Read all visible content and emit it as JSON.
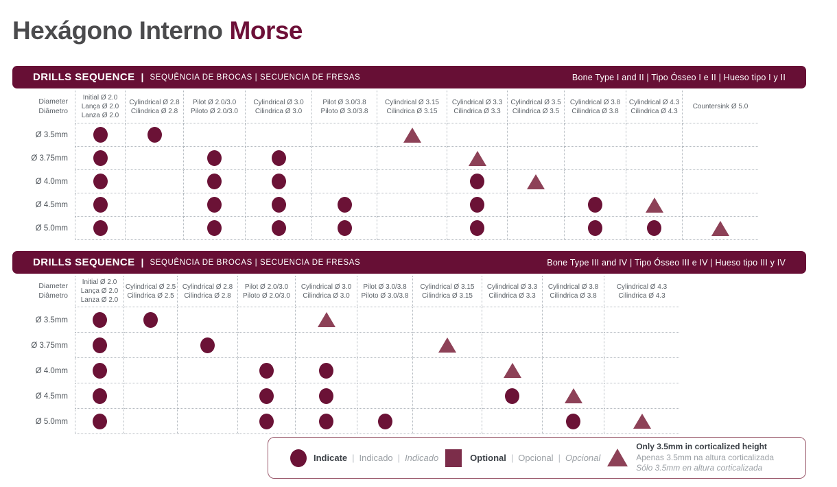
{
  "page": {
    "title_main": "Hexágono Interno",
    "title_accent": "Morse"
  },
  "ui": {
    "pipe": "|"
  },
  "colors": {
    "brand_maroon": "#670f35",
    "indicate_dot": "#6b1236",
    "optional_square": "#7c2d4a",
    "conditional_triangle": "#8d4157",
    "title_gray": "#4b4b4d"
  },
  "legend": {
    "indicate": {
      "en": "Indicate",
      "pt": "Indicado",
      "es": "Indicado"
    },
    "optional": {
      "en": "Optional",
      "pt": "Opcional",
      "es": "Opcional"
    },
    "conditional": {
      "en": "Only 3.5mm in corticalized height",
      "pt": "Apenas 3.5mm na altura corticalizada",
      "es": "Sólo 3.5mm en altura corticalizada"
    }
  },
  "mark_key": {
    "c": "indicate",
    "s": "optional",
    "t": "conditional"
  },
  "tables": [
    {
      "header": {
        "title": "DRILLS SEQUENCE",
        "subtitle": "SEQUÊNCIA DE BROCAS | SECUENCIA DE FRESAS",
        "bone_type": "Bone Type I and II | Tipo Ósseo I e II | Hueso tipo I y II"
      },
      "corner": [
        "Diameter",
        "Diâmetro"
      ],
      "columns": [
        [
          "Initial Ø 2.0",
          "Lança Ø 2.0",
          "Lanza Ø 2.0"
        ],
        [
          "Cylindrical Ø 2.8",
          "Cilindrica Ø 2.8"
        ],
        [
          "Pilot Ø 2.0/3.0",
          "Piloto Ø 2.0/3.0"
        ],
        [
          "Cylindrical Ø 3.0",
          "Cilindrica Ø 3.0"
        ],
        [
          "Pilot Ø 3.0/3.8",
          "Piloto Ø 3.0/3.8"
        ],
        [
          "Cylindrical Ø 3.15",
          "Cilindrica Ø 3.15"
        ],
        [
          "Cylindrical Ø 3.3",
          "Cilindrica Ø 3.3"
        ],
        [
          "Cylindrical Ø 3.5",
          "Cilindrica Ø 3.5"
        ],
        [
          "Cylindrical Ø 3.8",
          "Cilindrica Ø 3.8"
        ],
        [
          "Cylindrical Ø 4.3",
          "Cilindrica Ø 4.3"
        ],
        [
          "Countersink Ø 5.0"
        ]
      ],
      "rows": [
        {
          "label": "Ø 3.5mm",
          "marks": [
            "c",
            "c",
            "",
            "",
            "",
            "t",
            "",
            "",
            "",
            "",
            ""
          ]
        },
        {
          "label": "Ø 3.75mm",
          "marks": [
            "c",
            "",
            "c",
            "c",
            "",
            "",
            "t",
            "",
            "",
            "",
            ""
          ]
        },
        {
          "label": "Ø 4.0mm",
          "marks": [
            "c",
            "",
            "c",
            "c",
            "",
            "",
            "c",
            "t",
            "",
            "",
            ""
          ]
        },
        {
          "label": "Ø 4.5mm",
          "marks": [
            "c",
            "",
            "c",
            "c",
            "c",
            "",
            "c",
            "",
            "c",
            "t",
            ""
          ]
        },
        {
          "label": "Ø 5.0mm",
          "marks": [
            "c",
            "",
            "c",
            "c",
            "c",
            "",
            "c",
            "",
            "c",
            "c",
            "t"
          ]
        }
      ]
    },
    {
      "header": {
        "title": "DRILLS SEQUENCE",
        "subtitle": "SEQUÊNCIA DE BROCAS | SECUENCIA DE FRESAS",
        "bone_type": "Bone Type III and IV | Tipo Ósseo III e IV | Hueso tipo III y IV"
      },
      "corner": [
        "Diameter",
        "Diâmetro"
      ],
      "columns": [
        [
          "Initial Ø 2.0",
          "Lança Ø 2.0",
          "Lanza Ø 2.0"
        ],
        [
          "Cylindrical Ø 2.5",
          "Cilindrica Ø 2.5"
        ],
        [
          "Cylindrical Ø 2.8",
          "Cilindrica Ø 2.8"
        ],
        [
          "Pilot Ø 2.0/3.0",
          "Piloto Ø 2.0/3.0"
        ],
        [
          "Cylindrical Ø 3.0",
          "Cilindrica Ø 3.0"
        ],
        [
          "Pilot Ø 3.0/3.8",
          "Piloto Ø 3.0/3.8"
        ],
        [
          "Cylindrical Ø 3.15",
          "Cilindrica Ø 3.15"
        ],
        [
          "Cylindrical Ø 3.3",
          "Cilindrica Ø 3.3"
        ],
        [
          "Cylindrical Ø 3.8",
          "Cilindrica Ø 3.8"
        ],
        [
          "Cylindrical Ø 4.3",
          "Cilindrica Ø 4.3"
        ]
      ],
      "rows": [
        {
          "label": "Ø 3.5mm",
          "marks": [
            "c",
            "c",
            "",
            "",
            "t",
            "",
            "",
            "",
            "",
            ""
          ]
        },
        {
          "label": "Ø 3.75mm",
          "marks": [
            "c",
            "",
            "c",
            "",
            "",
            "",
            "t",
            "",
            "",
            ""
          ]
        },
        {
          "label": "Ø 4.0mm",
          "marks": [
            "c",
            "",
            "",
            "c",
            "c",
            "",
            "",
            "t",
            "",
            ""
          ]
        },
        {
          "label": "Ø 4.5mm",
          "marks": [
            "c",
            "",
            "",
            "c",
            "c",
            "",
            "",
            "c",
            "t",
            ""
          ]
        },
        {
          "label": "Ø 5.0mm",
          "marks": [
            "c",
            "",
            "",
            "c",
            "c",
            "c",
            "",
            "",
            "c",
            "t"
          ]
        }
      ]
    }
  ]
}
